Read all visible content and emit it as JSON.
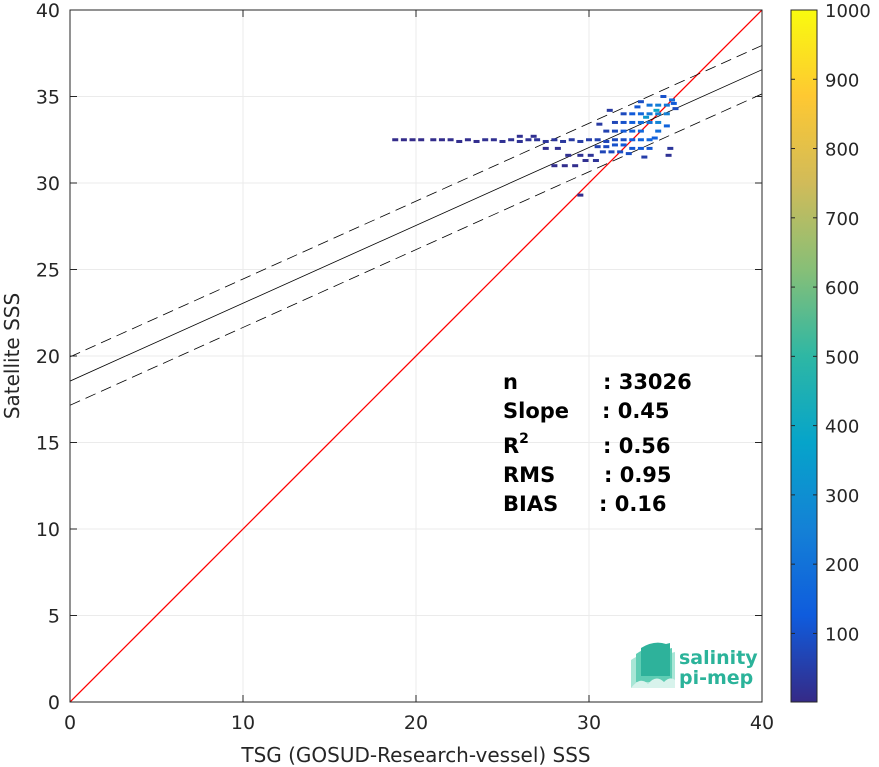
{
  "chart_data": {
    "type": "scatter",
    "subtype": "density-scatter",
    "xlabel": "TSG (GOSUD-Research-vessel) SSS",
    "ylabel": "Satellite SSS",
    "xlim": [
      0,
      40
    ],
    "ylim": [
      0,
      40
    ],
    "xticks": [
      0,
      10,
      20,
      30,
      40
    ],
    "yticks": [
      0,
      5,
      10,
      15,
      20,
      25,
      30,
      35,
      40
    ],
    "grid": true,
    "identity_line": {
      "color": "#ff0000",
      "x": [
        0,
        40
      ],
      "y": [
        0,
        40
      ]
    },
    "fit_line": {
      "slope": 0.45,
      "intercept": 18.55,
      "color": "#000000"
    },
    "fit_bounds": {
      "offset": 1.4,
      "style": "dashed",
      "color": "#000000"
    },
    "colorbar": {
      "min": 1,
      "max": 1000,
      "ticks": [
        100,
        200,
        300,
        400,
        500,
        600,
        700,
        800,
        900,
        1000
      ],
      "colormap": "parula",
      "colors": [
        "#352a87",
        "#0f5cdd",
        "#1481d6",
        "#06a4ca",
        "#2eb7a4",
        "#87bf77",
        "#d1bb59",
        "#fec832",
        "#f9fb0e"
      ]
    },
    "stats": [
      {
        "label": "n",
        "value": ": 33026"
      },
      {
        "label": "Slope",
        "value": ": 0.45"
      },
      {
        "label": "R",
        "sup": "2",
        "value": ": 0.56"
      },
      {
        "label": "RMS",
        "value": ": 0.95"
      },
      {
        "label": "BIAS",
        "value": ": 0.16"
      }
    ],
    "density_points": [
      {
        "x": 18.8,
        "y": 32.5,
        "c": 5
      },
      {
        "x": 19.3,
        "y": 32.5,
        "c": 5
      },
      {
        "x": 19.8,
        "y": 32.5,
        "c": 5
      },
      {
        "x": 20.3,
        "y": 32.5,
        "c": 5
      },
      {
        "x": 21.0,
        "y": 32.5,
        "c": 8
      },
      {
        "x": 21.5,
        "y": 32.5,
        "c": 8
      },
      {
        "x": 22.0,
        "y": 32.5,
        "c": 10
      },
      {
        "x": 22.5,
        "y": 32.4,
        "c": 10
      },
      {
        "x": 23.0,
        "y": 32.5,
        "c": 12
      },
      {
        "x": 23.5,
        "y": 32.4,
        "c": 12
      },
      {
        "x": 24.0,
        "y": 32.5,
        "c": 15
      },
      {
        "x": 24.5,
        "y": 32.5,
        "c": 15
      },
      {
        "x": 25.0,
        "y": 32.4,
        "c": 18
      },
      {
        "x": 25.5,
        "y": 32.5,
        "c": 20
      },
      {
        "x": 26.0,
        "y": 32.4,
        "c": 20
      },
      {
        "x": 26.5,
        "y": 32.5,
        "c": 22
      },
      {
        "x": 27.0,
        "y": 32.5,
        "c": 25
      },
      {
        "x": 27.5,
        "y": 32.4,
        "c": 28
      },
      {
        "x": 28.0,
        "y": 32.5,
        "c": 30
      },
      {
        "x": 28.5,
        "y": 32.4,
        "c": 35
      },
      {
        "x": 29.0,
        "y": 32.5,
        "c": 40
      },
      {
        "x": 29.5,
        "y": 32.4,
        "c": 45
      },
      {
        "x": 30.0,
        "y": 32.5,
        "c": 50
      },
      {
        "x": 30.5,
        "y": 32.5,
        "c": 60
      },
      {
        "x": 31.0,
        "y": 32.4,
        "c": 70
      },
      {
        "x": 31.5,
        "y": 32.5,
        "c": 80
      },
      {
        "x": 32.0,
        "y": 32.5,
        "c": 90
      },
      {
        "x": 26.0,
        "y": 32.7,
        "c": 15
      },
      {
        "x": 26.8,
        "y": 32.7,
        "c": 15
      },
      {
        "x": 27.5,
        "y": 32.0,
        "c": 12
      },
      {
        "x": 28.2,
        "y": 32.0,
        "c": 15
      },
      {
        "x": 28.8,
        "y": 31.6,
        "c": 15
      },
      {
        "x": 29.5,
        "y": 31.6,
        "c": 20
      },
      {
        "x": 30.1,
        "y": 31.6,
        "c": 25
      },
      {
        "x": 28.0,
        "y": 31.0,
        "c": 10
      },
      {
        "x": 28.6,
        "y": 31.0,
        "c": 10
      },
      {
        "x": 29.2,
        "y": 31.0,
        "c": 10
      },
      {
        "x": 29.8,
        "y": 31.3,
        "c": 15
      },
      {
        "x": 30.4,
        "y": 31.3,
        "c": 25
      },
      {
        "x": 29.5,
        "y": 29.3,
        "c": 8
      },
      {
        "x": 30.5,
        "y": 32.1,
        "c": 60
      },
      {
        "x": 31.0,
        "y": 32.1,
        "c": 80
      },
      {
        "x": 31.5,
        "y": 32.2,
        "c": 100
      },
      {
        "x": 32.0,
        "y": 32.2,
        "c": 120
      },
      {
        "x": 30.8,
        "y": 31.8,
        "c": 70
      },
      {
        "x": 31.3,
        "y": 31.8,
        "c": 80
      },
      {
        "x": 31.8,
        "y": 31.8,
        "c": 90
      },
      {
        "x": 32.3,
        "y": 31.7,
        "c": 90
      },
      {
        "x": 31.0,
        "y": 33.0,
        "c": 60
      },
      {
        "x": 31.5,
        "y": 33.0,
        "c": 80
      },
      {
        "x": 32.0,
        "y": 33.0,
        "c": 120
      },
      {
        "x": 32.5,
        "y": 33.0,
        "c": 150
      },
      {
        "x": 33.0,
        "y": 33.0,
        "c": 170
      },
      {
        "x": 31.5,
        "y": 33.5,
        "c": 70
      },
      {
        "x": 32.0,
        "y": 33.5,
        "c": 100
      },
      {
        "x": 32.5,
        "y": 33.5,
        "c": 140
      },
      {
        "x": 33.0,
        "y": 33.5,
        "c": 180
      },
      {
        "x": 33.5,
        "y": 33.5,
        "c": 200
      },
      {
        "x": 32.5,
        "y": 32.5,
        "c": 130
      },
      {
        "x": 33.0,
        "y": 32.5,
        "c": 150
      },
      {
        "x": 33.5,
        "y": 32.5,
        "c": 160
      },
      {
        "x": 32.5,
        "y": 32.0,
        "c": 110
      },
      {
        "x": 33.0,
        "y": 32.0,
        "c": 120
      },
      {
        "x": 33.5,
        "y": 32.0,
        "c": 110
      },
      {
        "x": 32.0,
        "y": 34.0,
        "c": 80
      },
      {
        "x": 32.5,
        "y": 34.0,
        "c": 120
      },
      {
        "x": 33.0,
        "y": 34.0,
        "c": 160
      },
      {
        "x": 33.5,
        "y": 34.0,
        "c": 220
      },
      {
        "x": 34.0,
        "y": 34.0,
        "c": 260
      },
      {
        "x": 33.5,
        "y": 34.5,
        "c": 200
      },
      {
        "x": 34.0,
        "y": 34.5,
        "c": 240
      },
      {
        "x": 34.5,
        "y": 34.5,
        "c": 220
      },
      {
        "x": 34.0,
        "y": 33.5,
        "c": 260
      },
      {
        "x": 34.5,
        "y": 34.0,
        "c": 250
      },
      {
        "x": 34.8,
        "y": 34.8,
        "c": 180
      },
      {
        "x": 34.0,
        "y": 33.0,
        "c": 180
      },
      {
        "x": 34.5,
        "y": 33.3,
        "c": 150
      },
      {
        "x": 33.0,
        "y": 34.7,
        "c": 90
      },
      {
        "x": 34.3,
        "y": 35.0,
        "c": 100
      },
      {
        "x": 35.0,
        "y": 34.3,
        "c": 80
      },
      {
        "x": 33.8,
        "y": 32.6,
        "c": 140
      },
      {
        "x": 31.2,
        "y": 34.2,
        "c": 40
      },
      {
        "x": 30.6,
        "y": 33.4,
        "c": 40
      },
      {
        "x": 33.2,
        "y": 31.5,
        "c": 50
      },
      {
        "x": 34.7,
        "y": 32.0,
        "c": 30
      },
      {
        "x": 34.6,
        "y": 31.6,
        "c": 20
      },
      {
        "x": 32.8,
        "y": 34.4,
        "c": 110
      },
      {
        "x": 34.9,
        "y": 34.6,
        "c": 120
      },
      {
        "x": 33.3,
        "y": 33.8,
        "c": 330
      },
      {
        "x": 33.9,
        "y": 34.2,
        "c": 380
      }
    ]
  },
  "logo": {
    "line1": "salinity",
    "line2": "pi-mep"
  }
}
